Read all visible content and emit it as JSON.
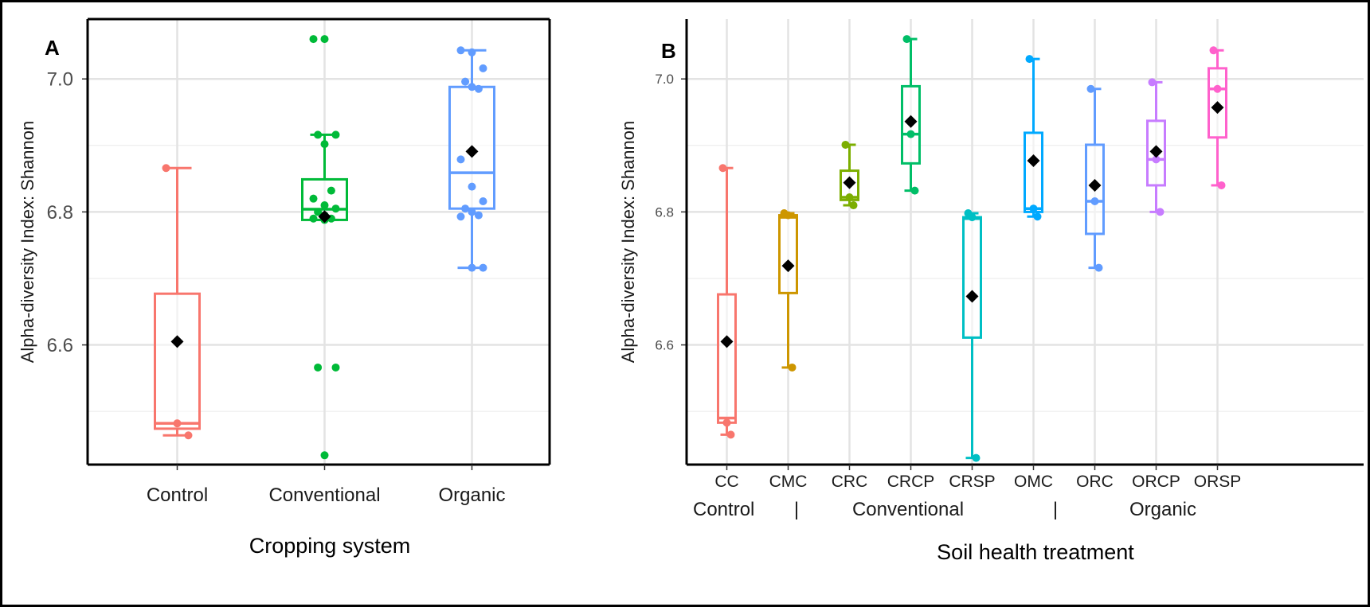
{
  "panels": [
    {
      "letter": "A"
    },
    {
      "letter": "B"
    }
  ],
  "chart_data": [
    {
      "type": "box",
      "panel": "A",
      "title": "",
      "xlabel": "Cropping system",
      "ylabel": "Alpha-diversity Index: Shannon",
      "ylim": [
        6.42,
        7.09
      ],
      "yticks": [
        6.6,
        6.8,
        7.0
      ],
      "ytick_labels": [
        "6.6",
        "6.8",
        "7.0"
      ],
      "grid": true,
      "legend": "none",
      "categories": [
        "Control",
        "Conventional",
        "Organic"
      ],
      "colors": [
        "#F8766D",
        "#00BA38",
        "#619CFF"
      ],
      "boxes": [
        {
          "q1": 6.474,
          "median": 6.482,
          "q3": 6.677,
          "whisker_low": 6.464,
          "whisker_high": 6.866,
          "mean": 6.605
        },
        {
          "q1": 6.788,
          "median": 6.804,
          "q3": 6.849,
          "whisker_low": 6.788,
          "whisker_high": 6.916,
          "mean": 6.793
        },
        {
          "q1": 6.805,
          "median": 6.859,
          "q3": 6.988,
          "whisker_low": 6.716,
          "whisker_high": 7.043,
          "mean": 6.891
        }
      ],
      "points": [
        [
          6.866,
          6.482,
          6.464
        ],
        [
          7.06,
          7.06,
          6.916,
          6.916,
          6.902,
          6.832,
          6.82,
          6.81,
          6.805,
          6.8,
          6.795,
          6.79,
          6.79,
          6.788,
          6.566,
          6.566,
          6.434
        ],
        [
          7.043,
          7.04,
          7.016,
          6.996,
          6.988,
          6.985,
          6.879,
          6.838,
          6.816,
          6.805,
          6.8,
          6.795,
          6.793,
          6.716,
          6.716
        ]
      ]
    },
    {
      "type": "box",
      "panel": "B",
      "title": "",
      "xlabel": "Soil health treatment",
      "ylabel": "Alpha-diversity Index: Shannon",
      "ylim": [
        6.42,
        7.09
      ],
      "yticks": [
        6.6,
        6.8,
        7.0
      ],
      "ytick_labels": [
        "6.6",
        "6.8",
        "7.0"
      ],
      "grid": true,
      "legend": "none",
      "categories": [
        "CC",
        "CMC",
        "CRC",
        "CRCP",
        "CRSP",
        "OMC",
        "ORC",
        "ORCP",
        "ORSP"
      ],
      "groups": [
        {
          "label": "Control",
          "separator": "|"
        },
        {
          "label": "Conventional",
          "separator": "|"
        },
        {
          "label": "Organic",
          "separator": ""
        }
      ],
      "colors": [
        "#F8766D",
        "#CD9600",
        "#7CAE00",
        "#00BE67",
        "#00BFC4",
        "#00A9FF",
        "#619CFF",
        "#C77CFF",
        "#FF61CC"
      ],
      "boxes": [
        {
          "q1": 6.483,
          "median": 6.49,
          "q3": 6.676,
          "whisker_low": 6.465,
          "whisker_high": 6.866,
          "mean": 6.605
        },
        {
          "q1": 6.678,
          "median": 6.792,
          "q3": 6.795,
          "whisker_low": 6.566,
          "whisker_high": 6.798,
          "mean": 6.719
        },
        {
          "q1": 6.818,
          "median": 6.822,
          "q3": 6.862,
          "whisker_low": 6.81,
          "whisker_high": 6.901,
          "mean": 6.844
        },
        {
          "q1": 6.873,
          "median": 6.917,
          "q3": 6.989,
          "whisker_low": 6.832,
          "whisker_high": 7.06,
          "mean": 6.936
        },
        {
          "q1": 6.611,
          "median": 6.79,
          "q3": 6.792,
          "whisker_low": 6.43,
          "whisker_high": 6.798,
          "mean": 6.673
        },
        {
          "q1": 6.8,
          "median": 6.805,
          "q3": 6.919,
          "whisker_low": 6.793,
          "whisker_high": 7.03,
          "mean": 6.877
        },
        {
          "q1": 6.767,
          "median": 6.816,
          "q3": 6.901,
          "whisker_low": 6.716,
          "whisker_high": 6.985,
          "mean": 6.84
        },
        {
          "q1": 6.84,
          "median": 6.879,
          "q3": 6.937,
          "whisker_low": 6.8,
          "whisker_high": 6.995,
          "mean": 6.891
        },
        {
          "q1": 6.912,
          "median": 6.985,
          "q3": 7.016,
          "whisker_low": 6.84,
          "whisker_high": 7.043,
          "mean": 6.957
        }
      ],
      "points": [
        [
          6.866,
          6.483,
          6.465
        ],
        [
          6.798,
          6.795,
          6.566
        ],
        [
          6.901,
          6.822,
          6.81
        ],
        [
          7.06,
          6.917,
          6.832
        ],
        [
          6.798,
          6.792,
          6.43
        ],
        [
          7.03,
          6.805,
          6.793
        ],
        [
          6.985,
          6.816,
          6.716
        ],
        [
          6.995,
          6.879,
          6.8
        ],
        [
          7.043,
          6.985,
          6.84
        ]
      ]
    }
  ]
}
